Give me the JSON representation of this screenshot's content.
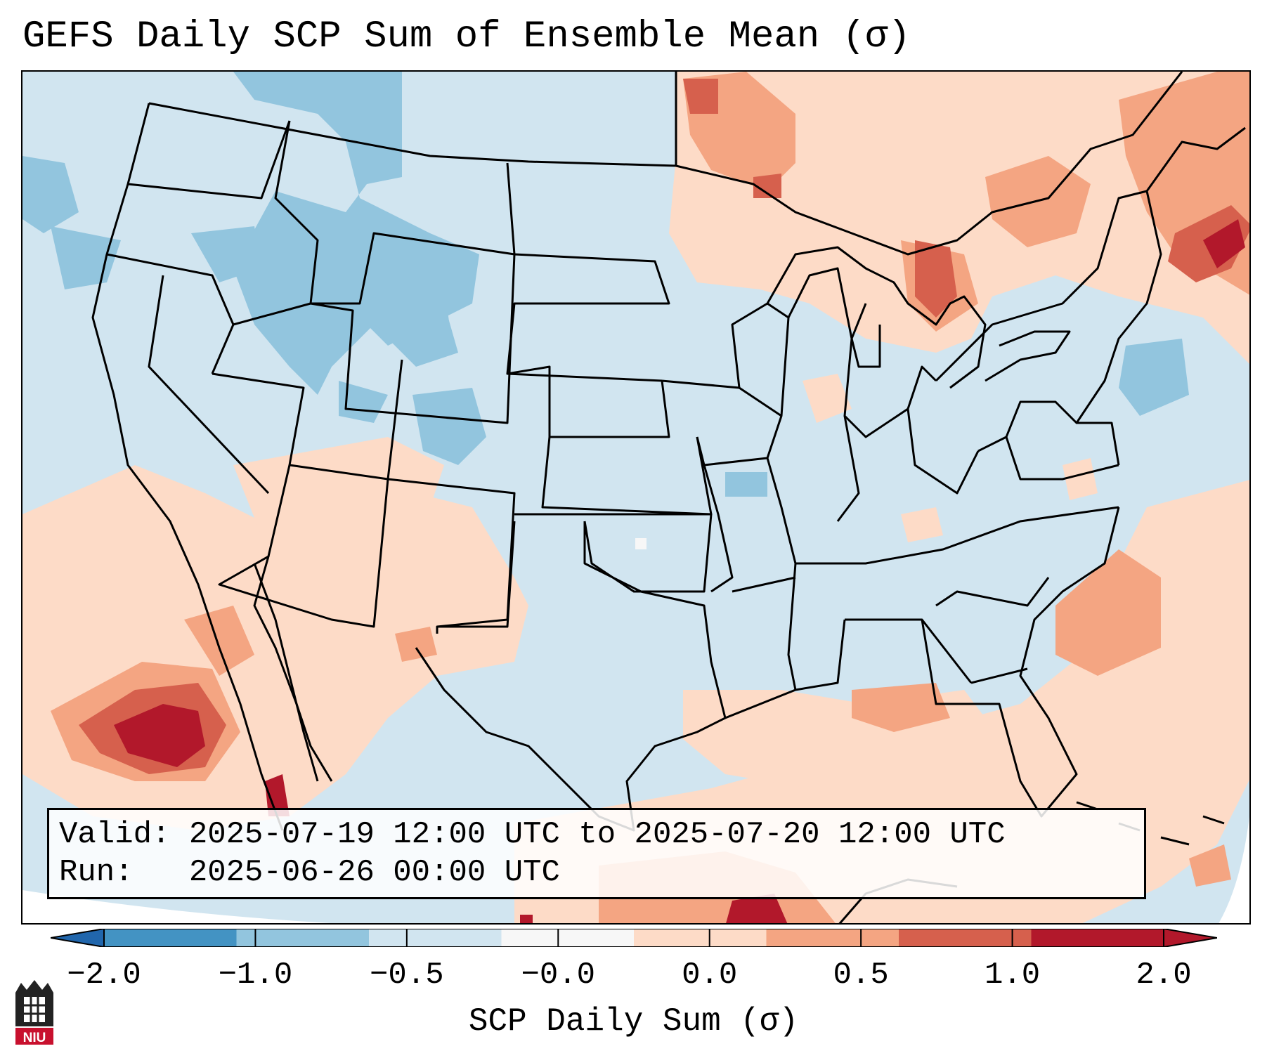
{
  "title": "GEFS Daily SCP Sum of Ensemble Mean (σ)",
  "valid_line": "Valid: 2025-07-19 12:00 UTC to 2025-07-20 12:00 UTC",
  "run_line": "Run:   2025-06-26 00:00 UTC",
  "colorbar": {
    "label": "SCP Daily Sum (σ)",
    "ticks": [
      "−2.0",
      "−1.0",
      "−0.5",
      "−0.0",
      "0.0",
      "0.5",
      "1.0",
      "2.0"
    ],
    "colors": [
      "#4393c3",
      "#92c5de",
      "#d1e5f0",
      "#f7f7f7",
      "#fddbc7",
      "#f4a582",
      "#d6604d",
      "#b2182b"
    ],
    "under_color": "#2166ac",
    "over_color": "#b2182b"
  },
  "logo": {
    "text": "NIU",
    "color": "#c8102e"
  }
}
